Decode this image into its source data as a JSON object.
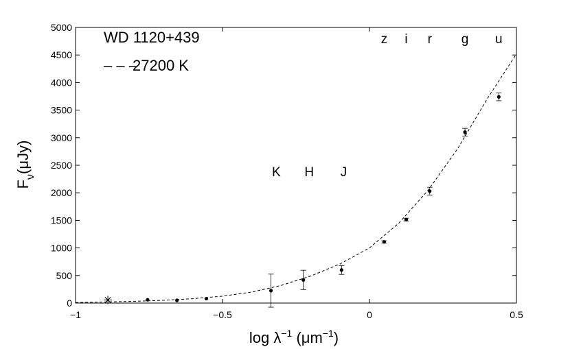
{
  "chart_data": {
    "type": "scatter",
    "xlim": [
      -1,
      0.5
    ],
    "ylim": [
      0,
      5000
    ],
    "x_ticks": [
      -1,
      -0.5,
      0,
      0.5
    ],
    "x_tick_labels": [
      "−1",
      "−0.5",
      "0",
      "0.5"
    ],
    "y_ticks": [
      0,
      500,
      1000,
      1500,
      2000,
      2500,
      3000,
      3500,
      4000,
      4500,
      5000
    ],
    "y_tick_labels": [
      "0",
      "500",
      "1000",
      "1500",
      "2000",
      "2500",
      "3000",
      "3500",
      "4000",
      "4500",
      "5000"
    ],
    "xlabel": {
      "base": "log λ",
      "sup": "−1",
      "unit_open": " (μm",
      "unit_sup": "−1",
      "unit_close": ")"
    },
    "ylabel": {
      "base": "F",
      "sub": "ν",
      "unit": "(μJy)"
    },
    "legend": {
      "object": "WD 1120+439",
      "model_line": "– – –",
      "model_label": "27200  K"
    },
    "series": [
      {
        "type": "scatter",
        "style": "dot-with-errorbars",
        "points": [
          {
            "x": 0.44,
            "y": 3740,
            "err": 70
          },
          {
            "x": 0.325,
            "y": 3100,
            "err": 70
          },
          {
            "x": 0.205,
            "y": 2030,
            "err": 70
          },
          {
            "x": 0.125,
            "y": 1515,
            "err": 25
          },
          {
            "x": 0.05,
            "y": 1110,
            "err": 20
          },
          {
            "x": -0.095,
            "y": 600,
            "err": 80
          },
          {
            "x": -0.225,
            "y": 420,
            "err": 175
          },
          {
            "x": -0.335,
            "y": 225,
            "err": 300
          },
          {
            "x": -0.555,
            "y": 80,
            "err": 0
          },
          {
            "x": -0.655,
            "y": 50,
            "err": 0
          },
          {
            "x": -0.755,
            "y": 60,
            "err": 0
          }
        ]
      },
      {
        "type": "scatter",
        "style": "star",
        "points": [
          {
            "x": -0.89,
            "y": 55
          }
        ]
      },
      {
        "type": "line",
        "style": "dashed",
        "points": [
          {
            "x": -1.0,
            "y": 10
          },
          {
            "x": -0.9,
            "y": 20
          },
          {
            "x": -0.8,
            "y": 32
          },
          {
            "x": -0.7,
            "y": 50
          },
          {
            "x": -0.6,
            "y": 80
          },
          {
            "x": -0.5,
            "y": 125
          },
          {
            "x": -0.4,
            "y": 200
          },
          {
            "x": -0.3,
            "y": 320
          },
          {
            "x": -0.2,
            "y": 490
          },
          {
            "x": -0.1,
            "y": 710
          },
          {
            "x": 0.0,
            "y": 1000
          },
          {
            "x": 0.1,
            "y": 1450
          },
          {
            "x": 0.2,
            "y": 2050
          },
          {
            "x": 0.3,
            "y": 2800
          },
          {
            "x": 0.4,
            "y": 3700
          },
          {
            "x": 0.5,
            "y": 4520
          }
        ]
      }
    ],
    "band_labels": [
      {
        "text": "z",
        "x": 0.05,
        "y": 4800
      },
      {
        "text": "i",
        "x": 0.125,
        "y": 4800
      },
      {
        "text": "r",
        "x": 0.205,
        "y": 4800
      },
      {
        "text": "g",
        "x": 0.325,
        "y": 4800
      },
      {
        "text": "u",
        "x": 0.44,
        "y": 4800
      },
      {
        "text": "K",
        "x": -0.317,
        "y": 2390
      },
      {
        "text": "H",
        "x": -0.205,
        "y": 2390
      },
      {
        "text": "J",
        "x": -0.088,
        "y": 2390
      }
    ]
  }
}
